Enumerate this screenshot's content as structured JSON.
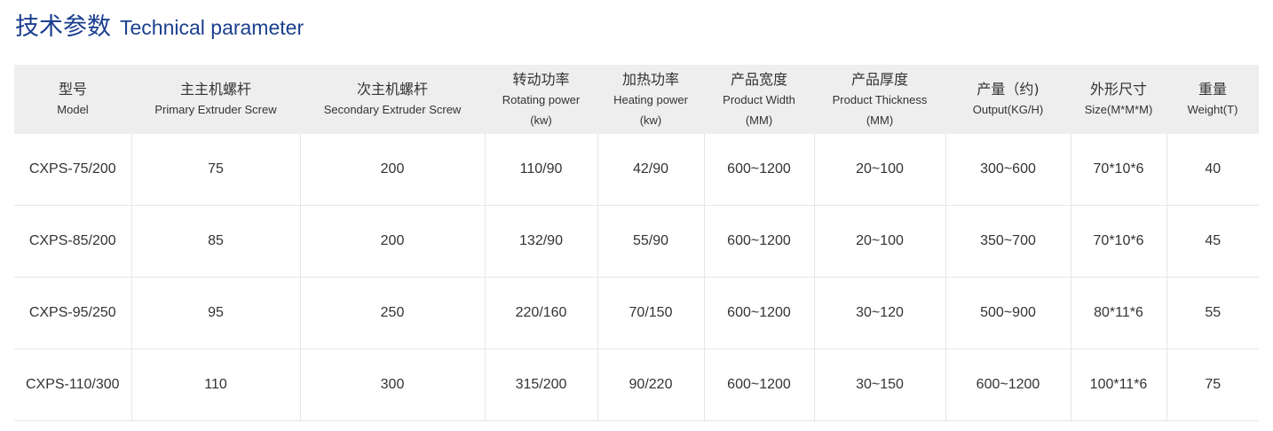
{
  "title": {
    "cn": "技术参数",
    "en": "Technical parameter"
  },
  "colors": {
    "title": "#1b3f8f",
    "header_bg": "#eeeeee"
  },
  "table": {
    "headers": [
      {
        "cn": "型号",
        "en": "Model",
        "unit": ""
      },
      {
        "cn": "主主机螺杆",
        "en": "Primary Extruder Screw",
        "unit": ""
      },
      {
        "cn": "次主机螺杆",
        "en": "Secondary Extruder Screw",
        "unit": ""
      },
      {
        "cn": "转动功率",
        "en": "Rotating power",
        "unit": "(kw)"
      },
      {
        "cn": "加热功率",
        "en": "Heating power",
        "unit": "(kw)"
      },
      {
        "cn": "产品宽度",
        "en": "Product Width",
        "unit": "(MM)"
      },
      {
        "cn": "产品厚度",
        "en": "Product Thickness",
        "unit": "(MM)"
      },
      {
        "cn": "产量（约)",
        "en": "Output(KG/H)",
        "unit": ""
      },
      {
        "cn": "外形尺寸",
        "en": "Size(M*M*M)",
        "unit": ""
      },
      {
        "cn": "重量",
        "en": "Weight(T)",
        "unit": ""
      }
    ],
    "rows": [
      [
        "CXPS-75/200",
        "75",
        "200",
        "110/90",
        "42/90",
        "600~1200",
        "20~100",
        "300~600",
        "70*10*6",
        "40"
      ],
      [
        "CXPS-85/200",
        "85",
        "200",
        "132/90",
        "55/90",
        "600~1200",
        "20~100",
        "350~700",
        "70*10*6",
        "45"
      ],
      [
        "CXPS-95/250",
        "95",
        "250",
        "220/160",
        "70/150",
        "600~1200",
        "30~120",
        "500~900",
        "80*11*6",
        "55"
      ],
      [
        "CXPS-110/300",
        "110",
        "300",
        "315/200",
        "90/220",
        "600~1200",
        "30~150",
        "600~1200",
        "100*11*6",
        "75"
      ]
    ]
  }
}
